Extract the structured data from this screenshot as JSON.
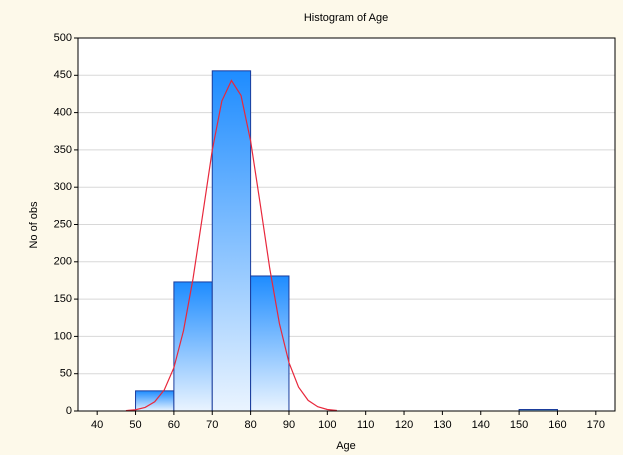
{
  "chart_data": {
    "type": "histogram",
    "title": "Histogram of Age",
    "xlabel": "Age",
    "ylabel": "No of obs",
    "bins": [
      50,
      60,
      70,
      80,
      90,
      100,
      110,
      120,
      130,
      140,
      150,
      160
    ],
    "counts": [
      27,
      173,
      456,
      181,
      0,
      0,
      0,
      0,
      0,
      0,
      2
    ],
    "color": "#1e8cff",
    "edgecolor": "#1a3c9c",
    "curve": {
      "color": "#e8283c",
      "x": [
        47.5,
        50,
        52.5,
        55,
        57.5,
        60,
        62.5,
        65,
        67.5,
        70,
        72.5,
        75,
        77.5,
        80,
        82.5,
        85,
        87.5,
        90,
        92.5,
        95,
        97.5,
        100,
        102.5
      ],
      "values": [
        0.5,
        1.7,
        4.8,
        12.4,
        28.4,
        58,
        107.6,
        177.8,
        263,
        349.5,
        415.5,
        443,
        423,
        362,
        277.6,
        190.8,
        117.5,
        64.9,
        32,
        14.2,
        5.7,
        2,
        0.7
      ]
    },
    "xlim": [
      35,
      175
    ],
    "ylim": [
      0,
      500
    ],
    "xticks": [
      40,
      50,
      60,
      70,
      80,
      90,
      100,
      110,
      120,
      130,
      140,
      150,
      160,
      170
    ],
    "yticks": [
      0,
      50,
      100,
      150,
      200,
      250,
      300,
      350,
      400,
      450,
      500
    ],
    "grid": true
  }
}
